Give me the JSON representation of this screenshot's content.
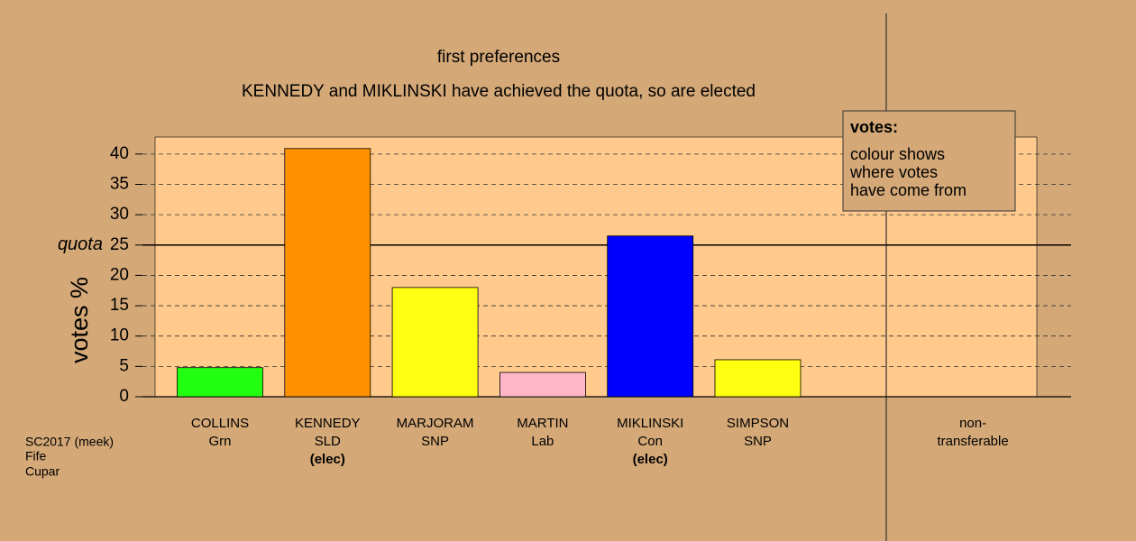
{
  "chart_data": {
    "type": "bar",
    "title": "first preferences",
    "subtitle": "KENNEDY and MIKLINSKI have achieved the quota, so are elected",
    "y_label": "votes %",
    "categories": [
      "COLLINS",
      "KENNEDY",
      "MARJORAM",
      "MARTIN",
      "MIKLINSKI",
      "SIMPSON",
      "non-"
    ],
    "parties": [
      "Grn",
      "SLD",
      "SNP",
      "Lab",
      "Con",
      "SNP",
      "transferable"
    ],
    "status": [
      null,
      "(elec)",
      null,
      null,
      "(elec)",
      null,
      null
    ],
    "values": [
      4.8,
      40.9,
      18.0,
      4.0,
      26.5,
      6.1,
      0
    ],
    "colors": [
      "#22ff11",
      "#ff9000",
      "#ffff11",
      "#ffb6c8",
      "#0000ff",
      "#ffff11",
      "#ffff11"
    ],
    "ylim": [
      0,
      42.8
    ],
    "yticks": [
      0,
      5,
      10,
      15,
      20,
      25,
      30,
      35,
      40
    ],
    "grid": true,
    "quota": 25,
    "quota_label": "quota",
    "legend": {
      "title": "votes:",
      "lines": [
        "colour shows",
        "where votes",
        "have come from"
      ]
    },
    "footnote": [
      "SC2017 (meek)",
      "Fife",
      "Cupar"
    ]
  }
}
